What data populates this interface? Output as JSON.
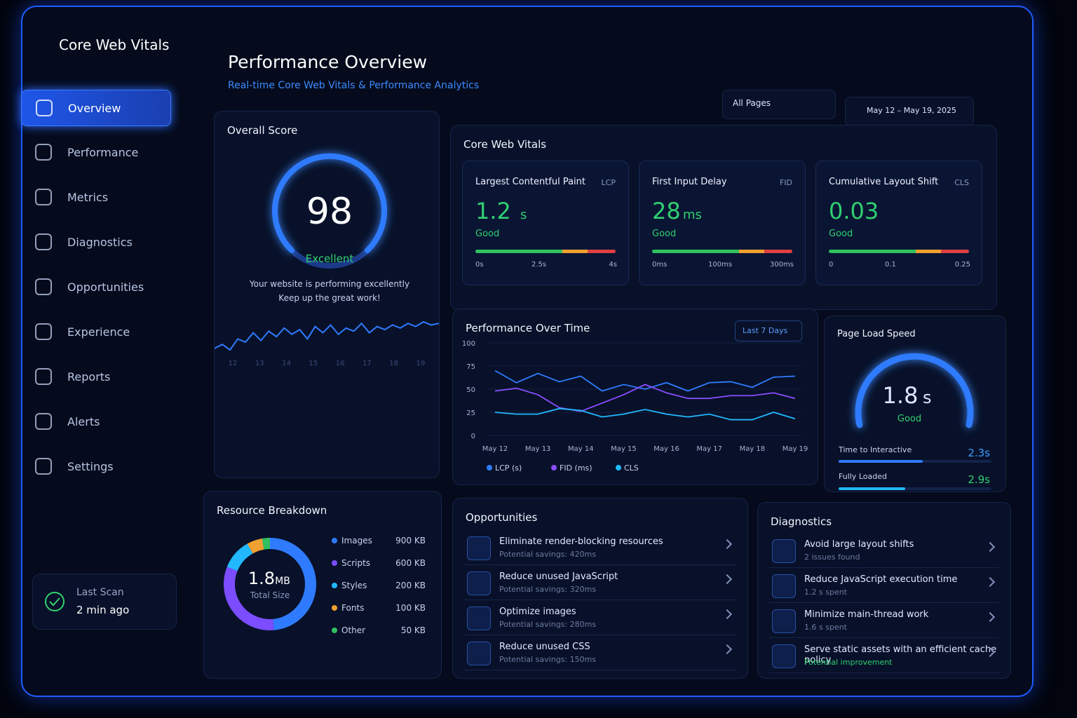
{
  "sidebar": {
    "title": "Core Web Vitals",
    "nav": [
      "Overview",
      "Performance",
      "Metrics",
      "Diagnostics",
      "Opportunities",
      "Experience",
      "Reports",
      "Alerts",
      "Settings"
    ],
    "last_scan": {
      "label": "Last Scan",
      "value": "2 min ago"
    }
  },
  "header": {
    "title": "Performance Overview",
    "subtitle": "Real-time Core Web Vitals & Performance Analytics",
    "page_filter": "All Pages",
    "date_range": "May 12 – May 19, 2025"
  },
  "overall_score": {
    "title": "Overall Score",
    "score": 98,
    "rating": "Excellent",
    "message": [
      "Your website is performing excellently",
      "Keep up the great work!"
    ],
    "trend_labels": [
      "12",
      "13",
      "14",
      "15",
      "16",
      "17",
      "18",
      "19"
    ],
    "trend": [
      40,
      45,
      38,
      52,
      48,
      60,
      50,
      62,
      55,
      66,
      58,
      64,
      52,
      68,
      60,
      70,
      58,
      66,
      62,
      72,
      60,
      68,
      64,
      70,
      66,
      72,
      68,
      74,
      70,
      72
    ]
  },
  "core_web_vitals": {
    "title": "Core Web Vitals",
    "metrics": [
      {
        "name": "Largest Contentful Paint",
        "abbr": "LCP",
        "value": 1.2,
        "unit": "s",
        "rating": "Good",
        "scale": [
          "0s",
          "2.5s",
          "4s"
        ]
      },
      {
        "name": "First Input Delay",
        "abbr": "FID",
        "value": 28,
        "unit": "ms",
        "rating": "Good",
        "scale": [
          "0ms",
          "100ms",
          "300ms"
        ]
      },
      {
        "name": "Cumulative Layout Shift",
        "abbr": "CLS",
        "value": 0.03,
        "unit": "",
        "rating": "Good",
        "scale": [
          "0",
          "0.1",
          "0.25"
        ]
      }
    ]
  },
  "performance_over_time": {
    "range": "Last 7 Days"
  },
  "chart_data": {
    "type": "line",
    "title": "Performance Over Time",
    "categories": [
      "May 12",
      null,
      "May 13",
      null,
      "May 14",
      null,
      "May 15",
      null,
      "May 16",
      null,
      "May 17",
      null,
      "May 18",
      null,
      "May 19"
    ],
    "series": [
      {
        "name": "LCP (s)",
        "color": "#2f7bff",
        "values": [
          70,
          57,
          67,
          58,
          64,
          48,
          55,
          50,
          57,
          48,
          57,
          58,
          52,
          63,
          64
        ]
      },
      {
        "name": "FID (ms)",
        "color": "#8a4dff",
        "values": [
          48,
          51,
          44,
          30,
          26,
          35,
          44,
          55,
          46,
          40,
          40,
          43,
          43,
          46,
          40
        ]
      },
      {
        "name": "CLS",
        "color": "#22b8ff",
        "values": [
          25,
          23,
          23,
          29,
          27,
          20,
          23,
          28,
          23,
          20,
          23,
          17,
          17,
          25,
          18
        ]
      }
    ],
    "ylim": [
      0,
      100
    ],
    "yticks": [
      0,
      25,
      50,
      75,
      100
    ],
    "grid": true
  },
  "page_load_speed": {
    "title": "Page Load Speed",
    "value": 1.8,
    "unit": "s",
    "rating": "Good",
    "metrics": [
      {
        "name": "Time to Interactive",
        "value": "2.3s"
      },
      {
        "name": "Fully Loaded",
        "value": "2.9s"
      }
    ]
  },
  "resource_breakdown": {
    "title": "Resource Breakdown",
    "total": 1.8,
    "total_unit": "MB",
    "total_label": "Total Size",
    "items": [
      {
        "name": "Images",
        "value": 900,
        "value_label": "900 KB",
        "color": "#2f7bff"
      },
      {
        "name": "Scripts",
        "value": 600,
        "value_label": "600 KB",
        "color": "#7b4dff"
      },
      {
        "name": "Styles",
        "value": 200,
        "value_label": "200 KB",
        "color": "#22b8ff"
      },
      {
        "name": "Fonts",
        "value": 100,
        "value_label": "100 KB",
        "color": "#f0a030"
      },
      {
        "name": "Other",
        "value": 50,
        "value_label": "50 KB",
        "color": "#30c060"
      }
    ]
  },
  "opportunities": {
    "title": "Opportunities",
    "items": [
      {
        "title": "Eliminate render-blocking resources",
        "detail": "Potential savings: 420ms"
      },
      {
        "title": "Reduce unused JavaScript",
        "detail": "Potential savings: 320ms"
      },
      {
        "title": "Optimize images",
        "detail": "Potential savings: 280ms"
      },
      {
        "title": "Reduce unused CSS",
        "detail": "Potential savings: 150ms"
      }
    ]
  },
  "diagnostics": {
    "title": "Diagnostics",
    "items": [
      {
        "title": "Avoid large layout shifts",
        "detail": "2 issues found"
      },
      {
        "title": "Reduce JavaScript execution time",
        "detail": "1.2 s spent"
      },
      {
        "title": "Minimize main-thread work",
        "detail": "1.6 s spent"
      },
      {
        "title": "Serve static assets with an efficient cache policy",
        "detail": "Potential improvement"
      }
    ]
  }
}
